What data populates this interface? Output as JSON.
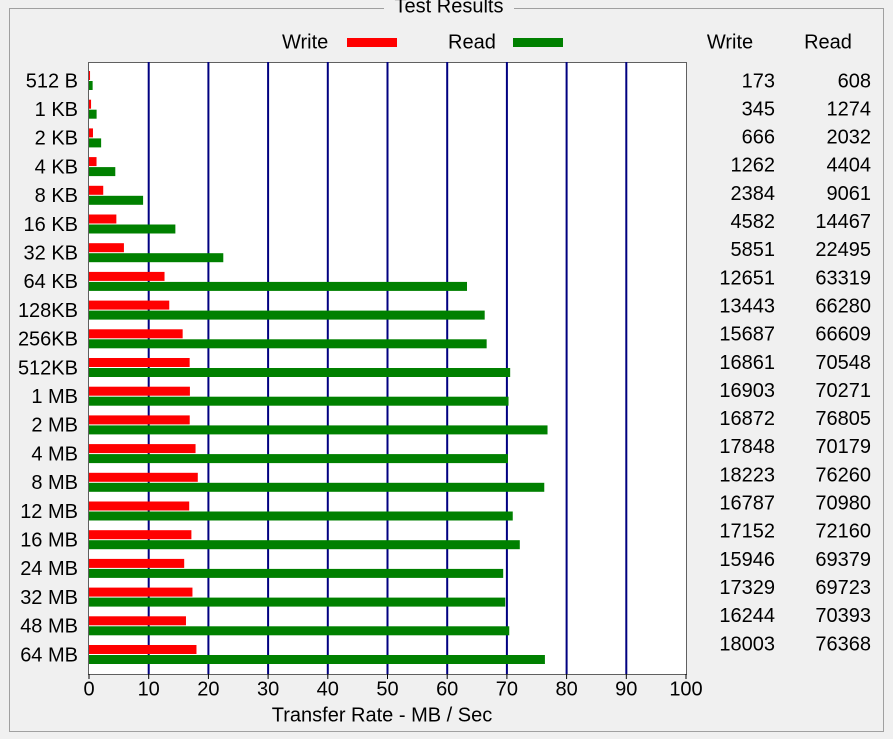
{
  "chart_data": {
    "type": "bar",
    "orientation": "horizontal",
    "title": "Test Results",
    "x_label": "Transfer Rate - MB / Sec",
    "categories": [
      "512 B",
      "1 KB",
      "2 KB",
      "4 KB",
      "8 KB",
      "16 KB",
      "32 KB",
      "64 KB",
      "128KB",
      "256KB",
      "512KB",
      "1 MB",
      "2 MB",
      "4 MB",
      "8 MB",
      "12 MB",
      "16 MB",
      "24 MB",
      "32 MB",
      "48 MB",
      "64 MB"
    ],
    "series": [
      {
        "name": "Write",
        "color": "#ff0000",
        "values": [
          0.173,
          0.345,
          0.666,
          1.262,
          2.384,
          4.582,
          5.851,
          12.651,
          13.443,
          15.687,
          16.861,
          16.903,
          16.872,
          17.848,
          18.223,
          16.787,
          17.152,
          15.946,
          17.329,
          16.244,
          18.003
        ],
        "value_labels": [
          "173",
          "345",
          "666",
          "1262",
          "2384",
          "4582",
          "5851",
          "12651",
          "13443",
          "15687",
          "16861",
          "16903",
          "16872",
          "17848",
          "18223",
          "16787",
          "17152",
          "15946",
          "17329",
          "16244",
          "18003"
        ]
      },
      {
        "name": "Read",
        "color": "#008000",
        "values": [
          0.608,
          1.274,
          2.032,
          4.404,
          9.061,
          14.467,
          22.495,
          63.319,
          66.28,
          66.609,
          70.548,
          70.271,
          76.805,
          70.179,
          76.26,
          70.98,
          72.16,
          69.379,
          69.723,
          70.393,
          76.368
        ],
        "value_labels": [
          "608",
          "1274",
          "2032",
          "4404",
          "9061",
          "14467",
          "22495",
          "63319",
          "66280",
          "66609",
          "70548",
          "70271",
          "76805",
          "70179",
          "76260",
          "70980",
          "72160",
          "69379",
          "69723",
          "70393",
          "76368"
        ]
      }
    ],
    "xlim": [
      0,
      100
    ],
    "xticks": [
      0,
      10,
      20,
      30,
      40,
      50,
      60,
      70,
      80,
      90,
      100
    ],
    "grid": true
  }
}
